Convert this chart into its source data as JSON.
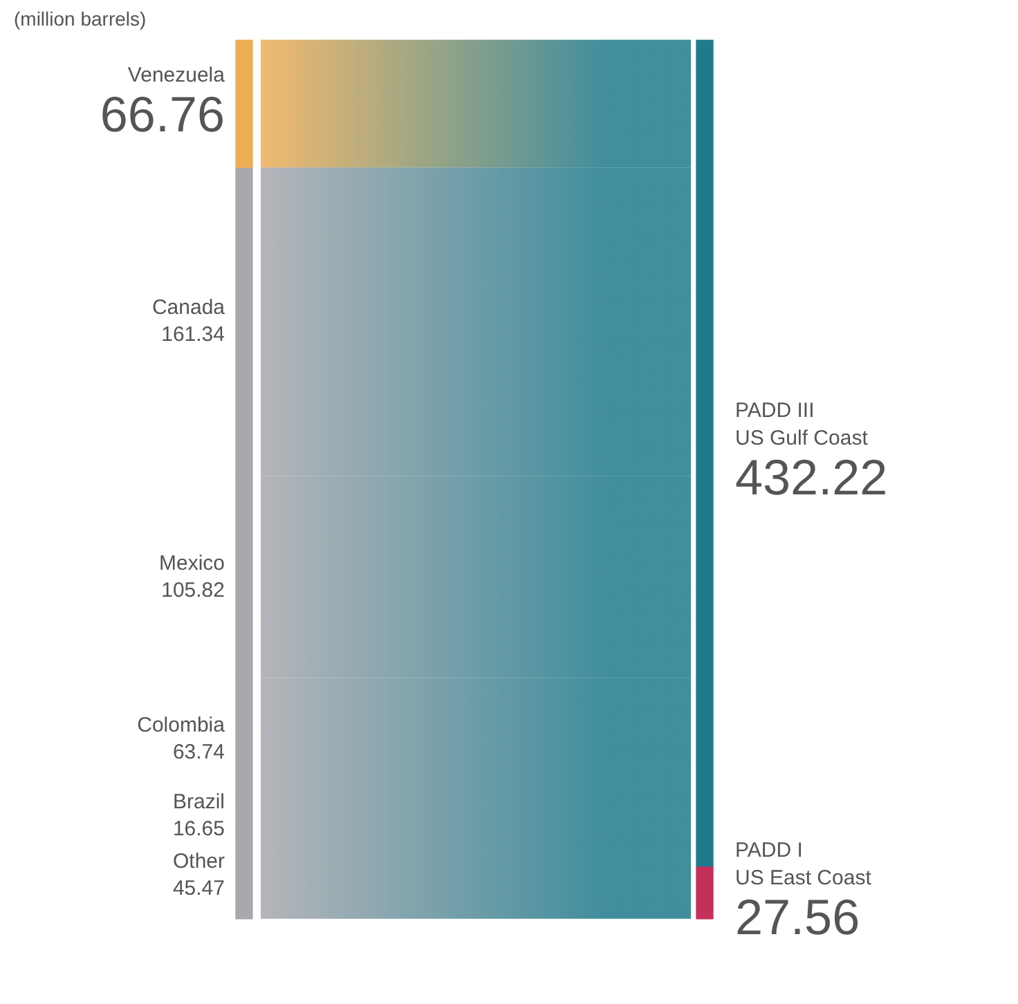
{
  "chart_data": {
    "type": "other",
    "title": "(million barrels)",
    "data_labels": true,
    "categories": [
      "Venezuela",
      "Canada",
      "Mexico",
      "Colombia",
      "Brazil",
      "Other",
      "PADD III\nUS Gulf Coast",
      "PADD I\nUS East Coast"
    ],
    "series": [
      {
        "values": [
          66.76,
          161.34,
          105.82,
          63.74,
          16.65,
          45.47,
          null,
          null
        ],
        "colors": [
          "#eeae55",
          "#a8a8ad",
          "#a8a8ad",
          "#a8a8ad",
          "#a8a8ad",
          "#a8a8ad",
          null,
          null
        ]
      },
      {
        "values": [
          null,
          null,
          null,
          null,
          null,
          null,
          432.22,
          27.56
        ],
        "colors": [
          null,
          null,
          null,
          null,
          null,
          null,
          "#1f7a8c",
          "#c3305c"
        ]
      }
    ]
  }
}
